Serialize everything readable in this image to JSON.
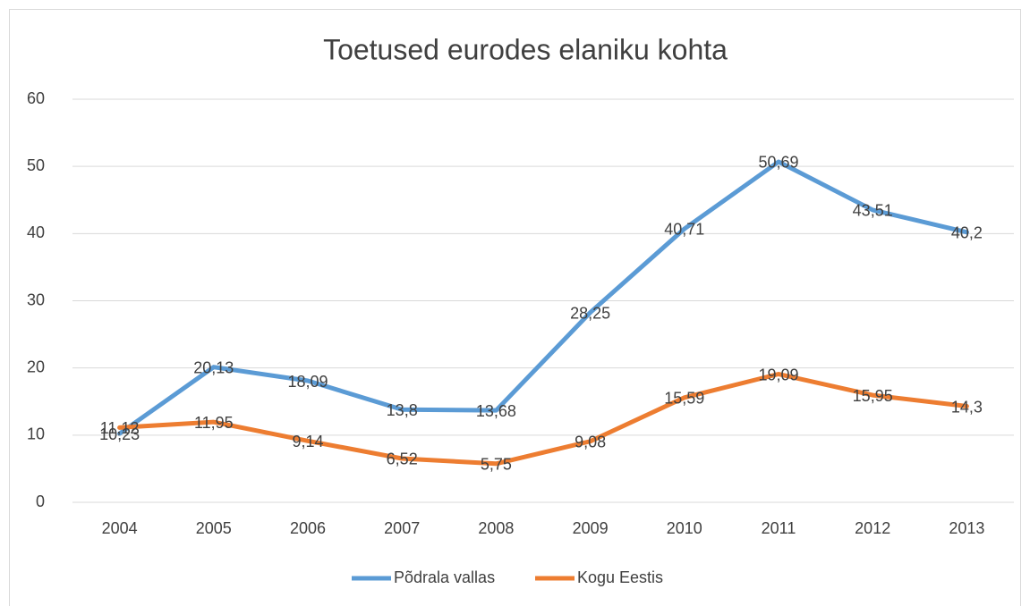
{
  "chart_data": {
    "type": "line",
    "title": "Toetused eurodes elaniku kohta",
    "categories": [
      "2004",
      "2005",
      "2006",
      "2007",
      "2008",
      "2009",
      "2010",
      "2011",
      "2012",
      "2013"
    ],
    "series": [
      {
        "name": "Põdrala vallas",
        "color": "#5b9bd5",
        "values": [
          10.23,
          20.13,
          18.09,
          13.8,
          13.68,
          28.25,
          40.71,
          50.69,
          43.51,
          40.2
        ],
        "value_labels": [
          "10,23",
          "20,13",
          "18,09",
          "13,8",
          "13,68",
          "28,25",
          "40,71",
          "50,69",
          "43,51",
          "40,2"
        ]
      },
      {
        "name": "Kogu Eestis",
        "color": "#ed7d31",
        "values": [
          11.12,
          11.95,
          9.14,
          6.52,
          5.75,
          9.08,
          15.59,
          19.09,
          15.95,
          14.3
        ],
        "value_labels": [
          "11,12",
          "11,95",
          "9,14",
          "6,52",
          "5,75",
          "9,08",
          "15,59",
          "19,09",
          "15,95",
          "14,3"
        ]
      }
    ],
    "ylim": [
      0,
      60
    ],
    "yticks": [
      0,
      10,
      20,
      30,
      40,
      50,
      60
    ],
    "grid": true,
    "legend": "bottom"
  }
}
